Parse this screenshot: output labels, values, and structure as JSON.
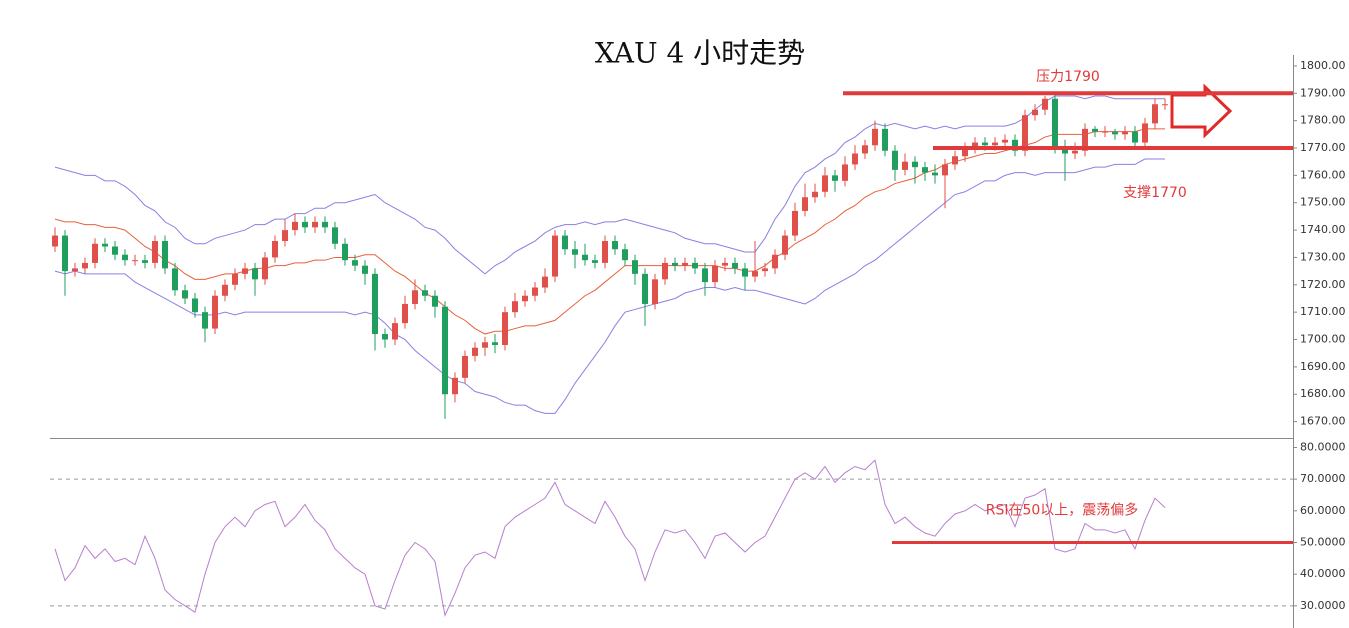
{
  "chart_data": [
    {
      "type": "candlestick",
      "title": "XAU 4 小时走势",
      "open": [
        1734,
        1738,
        1725,
        1726,
        1728,
        1735,
        1734,
        1731,
        1729,
        1729,
        1728,
        1736,
        1726,
        1718,
        1715,
        1710,
        1704,
        1716,
        1720,
        1724,
        1726,
        1722,
        1730,
        1736,
        1740,
        1743,
        1741,
        1743,
        1741,
        1735,
        1729,
        1727,
        1724,
        1702,
        1700,
        1706,
        1713,
        1718,
        1716,
        1712,
        1680,
        1686,
        1694,
        1697,
        1699,
        1698,
        1710,
        1714,
        1716,
        1719,
        1723,
        1738,
        1733,
        1731,
        1729,
        1728,
        1736,
        1733,
        1729,
        1724,
        1713,
        1722,
        1728,
        1727,
        1728,
        1726,
        1721,
        1727,
        1728,
        1726,
        1723,
        1725,
        1726,
        1731,
        1738,
        1747,
        1752,
        1754,
        1760,
        1758,
        1764,
        1768,
        1771,
        1777,
        1769,
        1762,
        1765,
        1763,
        1761,
        1760,
        1764,
        1767,
        1770,
        1772,
        1771,
        1772,
        1773,
        1769,
        1782,
        1784,
        1788,
        1770,
        1768,
        1769,
        1777,
        1776,
        1776,
        1775,
        1776,
        1772,
        1779,
        1786
      ],
      "high": [
        1741,
        1740,
        1728,
        1730,
        1737,
        1737,
        1736,
        1733,
        1731,
        1731,
        1738,
        1738,
        1728,
        1720,
        1717,
        1712,
        1718,
        1722,
        1726,
        1728,
        1728,
        1732,
        1738,
        1744,
        1746,
        1745,
        1745,
        1745,
        1743,
        1737,
        1731,
        1729,
        1726,
        1704,
        1708,
        1716,
        1722,
        1720,
        1718,
        1714,
        1688,
        1696,
        1699,
        1701,
        1702,
        1712,
        1717,
        1718,
        1721,
        1726,
        1740,
        1740,
        1736,
        1735,
        1731,
        1738,
        1738,
        1735,
        1731,
        1726,
        1724,
        1730,
        1730,
        1730,
        1730,
        1728,
        1729,
        1730,
        1730,
        1728,
        1736,
        1728,
        1733,
        1740,
        1750,
        1757,
        1757,
        1763,
        1762,
        1767,
        1771,
        1773,
        1780,
        1779,
        1771,
        1768,
        1767,
        1765,
        1764,
        1766,
        1769,
        1772,
        1774,
        1774,
        1774,
        1775,
        1775,
        1784,
        1786,
        1789,
        1790,
        1773,
        1772,
        1779,
        1778,
        1778,
        1777,
        1778,
        1778,
        1781,
        1788,
        1788
      ],
      "low": [
        1732,
        1716,
        1723,
        1724,
        1726,
        1732,
        1729,
        1727,
        1727,
        1726,
        1726,
        1724,
        1716,
        1713,
        1708,
        1699,
        1702,
        1714,
        1718,
        1722,
        1716,
        1720,
        1728,
        1734,
        1738,
        1739,
        1739,
        1739,
        1733,
        1727,
        1725,
        1720,
        1696,
        1697,
        1698,
        1704,
        1711,
        1714,
        1708,
        1671,
        1677,
        1684,
        1692,
        1694,
        1695,
        1696,
        1708,
        1712,
        1714,
        1717,
        1721,
        1731,
        1726,
        1727,
        1726,
        1726,
        1731,
        1727,
        1720,
        1705,
        1711,
        1720,
        1725,
        1725,
        1724,
        1716,
        1719,
        1725,
        1724,
        1718,
        1721,
        1723,
        1724,
        1729,
        1736,
        1745,
        1750,
        1752,
        1754,
        1756,
        1762,
        1766,
        1769,
        1767,
        1758,
        1760,
        1757,
        1758,
        1757,
        1748,
        1762,
        1765,
        1768,
        1769,
        1769,
        1770,
        1767,
        1767,
        1780,
        1782,
        1768,
        1758,
        1766,
        1767,
        1774,
        1774,
        1773,
        1773,
        1770,
        1770,
        1777,
        1784
      ],
      "close": [
        1738,
        1725,
        1726,
        1728,
        1735,
        1734,
        1731,
        1729,
        1729,
        1728,
        1736,
        1726,
        1718,
        1715,
        1710,
        1704,
        1716,
        1720,
        1724,
        1726,
        1722,
        1730,
        1736,
        1740,
        1743,
        1741,
        1743,
        1741,
        1735,
        1729,
        1727,
        1724,
        1702,
        1700,
        1706,
        1713,
        1718,
        1716,
        1712,
        1680,
        1686,
        1694,
        1697,
        1699,
        1698,
        1710,
        1714,
        1716,
        1719,
        1723,
        1738,
        1733,
        1731,
        1729,
        1728,
        1736,
        1733,
        1729,
        1724,
        1713,
        1722,
        1728,
        1727,
        1728,
        1726,
        1721,
        1727,
        1728,
        1726,
        1723,
        1725,
        1726,
        1731,
        1738,
        1747,
        1752,
        1754,
        1760,
        1758,
        1764,
        1768,
        1771,
        1777,
        1769,
        1762,
        1765,
        1763,
        1761,
        1760,
        1764,
        1767,
        1770,
        1772,
        1771,
        1772,
        1773,
        1769,
        1782,
        1784,
        1788,
        1770,
        1768,
        1769,
        1777,
        1776,
        1776,
        1775,
        1776,
        1772,
        1779,
        1786,
        1786
      ],
      "up_color": "#e0504a",
      "down_color": "#1f9e5e",
      "bands": {
        "upper": [
          1763,
          1762,
          1761,
          1760,
          1760,
          1758,
          1758,
          1756,
          1753,
          1749,
          1747,
          1743,
          1741,
          1737,
          1735,
          1735,
          1737,
          1738,
          1739,
          1740,
          1742,
          1742,
          1744,
          1744,
          1746,
          1746,
          1748,
          1748,
          1750,
          1750,
          1751,
          1752,
          1753,
          1750,
          1748,
          1746,
          1744,
          1741,
          1740,
          1737,
          1733,
          1730,
          1727,
          1724,
          1727,
          1729,
          1732,
          1734,
          1736,
          1739,
          1741,
          1742,
          1742,
          1743,
          1742,
          1743,
          1743,
          1744,
          1743,
          1742,
          1741,
          1740,
          1739,
          1737,
          1736,
          1735,
          1735,
          1734,
          1733,
          1732,
          1732,
          1737,
          1744,
          1749,
          1756,
          1761,
          1763,
          1766,
          1768,
          1772,
          1774,
          1777,
          1779,
          1778,
          1779,
          1778,
          1777,
          1778,
          1777,
          1778,
          1777,
          1778,
          1778,
          1778,
          1778,
          1778,
          1779,
          1781,
          1784,
          1787,
          1789,
          1789,
          1789,
          1788,
          1789,
          1789,
          1788,
          1788,
          1788,
          1788,
          1788,
          1788
        ],
        "middle": [
          1744,
          1743,
          1743,
          1742,
          1742,
          1741,
          1741,
          1740,
          1737,
          1734,
          1732,
          1729,
          1727,
          1724,
          1722,
          1722,
          1723,
          1724,
          1724,
          1725,
          1726,
          1726,
          1727,
          1727,
          1728,
          1728,
          1729,
          1729,
          1730,
          1730,
          1730,
          1731,
          1731,
          1728,
          1725,
          1723,
          1720,
          1717,
          1715,
          1712,
          1709,
          1707,
          1704,
          1702,
          1703,
          1703,
          1704,
          1705,
          1705,
          1706,
          1707,
          1710,
          1713,
          1716,
          1718,
          1721,
          1724,
          1727,
          1727,
          1727,
          1727,
          1727,
          1727,
          1727,
          1727,
          1727,
          1727,
          1726,
          1726,
          1725,
          1725,
          1727,
          1730,
          1732,
          1735,
          1737,
          1739,
          1742,
          1744,
          1747,
          1749,
          1752,
          1754,
          1755,
          1757,
          1758,
          1759,
          1761,
          1762,
          1764,
          1765,
          1766,
          1767,
          1768,
          1768,
          1769,
          1770,
          1771,
          1772,
          1774,
          1775,
          1775,
          1775,
          1775,
          1776,
          1776,
          1776,
          1776,
          1776,
          1777,
          1777,
          1777
        ],
        "lower": [
          1725,
          1724,
          1725,
          1724,
          1724,
          1724,
          1724,
          1724,
          1721,
          1719,
          1717,
          1715,
          1713,
          1711,
          1709,
          1709,
          1709,
          1710,
          1709,
          1710,
          1710,
          1710,
          1710,
          1710,
          1710,
          1710,
          1710,
          1710,
          1710,
          1710,
          1709,
          1710,
          1709,
          1706,
          1702,
          1700,
          1696,
          1693,
          1690,
          1687,
          1685,
          1684,
          1681,
          1680,
          1679,
          1677,
          1676,
          1676,
          1674,
          1673,
          1673,
          1678,
          1684,
          1689,
          1694,
          1699,
          1705,
          1710,
          1711,
          1712,
          1713,
          1714,
          1715,
          1717,
          1718,
          1719,
          1719,
          1718,
          1719,
          1718,
          1718,
          1717,
          1716,
          1715,
          1714,
          1713,
          1715,
          1718,
          1720,
          1722,
          1724,
          1727,
          1729,
          1732,
          1735,
          1738,
          1741,
          1744,
          1747,
          1750,
          1753,
          1754,
          1756,
          1758,
          1758,
          1760,
          1761,
          1761,
          1760,
          1761,
          1761,
          1761,
          1761,
          1762,
          1763,
          1763,
          1764,
          1764,
          1764,
          1766,
          1766,
          1766
        ],
        "band_color": "#8a7fe6",
        "middle_color": "#e8603c"
      },
      "levels": [
        {
          "value": 1790,
          "label": "压力1790",
          "color": "#e03a3a"
        },
        {
          "value": 1770,
          "label": "支撑1770",
          "color": "#e03a3a"
        }
      ],
      "ylim": [
        1664,
        1804
      ],
      "yticks": [
        {
          "value": 1670,
          "label": "1670.00"
        },
        {
          "value": 1680,
          "label": "1680.00"
        },
        {
          "value": 1690,
          "label": "1690.00"
        },
        {
          "value": 1700,
          "label": "1700.00"
        },
        {
          "value": 1710,
          "label": "1710.00"
        },
        {
          "value": 1720,
          "label": "1720.00"
        },
        {
          "value": 1730,
          "label": "1730.00"
        },
        {
          "value": 1740,
          "label": "1740.00"
        },
        {
          "value": 1750,
          "label": "1750.00"
        },
        {
          "value": 1760,
          "label": "1760.00"
        },
        {
          "value": 1770,
          "label": "1770.00"
        },
        {
          "value": 1780,
          "label": "1780.00"
        },
        {
          "value": 1790,
          "label": "1790.00"
        },
        {
          "value": 1800,
          "label": "1800.00"
        }
      ]
    },
    {
      "type": "line",
      "values": [
        48,
        38,
        42,
        49,
        45,
        48,
        44,
        45,
        43,
        52,
        45,
        35,
        32,
        30,
        28,
        40,
        50,
        55,
        58,
        55,
        60,
        62,
        63,
        55,
        58,
        62,
        57,
        54,
        48,
        45,
        42,
        40,
        30,
        29,
        38,
        46,
        50,
        48,
        44,
        27,
        34,
        42,
        46,
        47,
        45,
        55,
        58,
        60,
        62,
        64,
        69,
        62,
        60,
        58,
        56,
        63,
        58,
        52,
        48,
        38,
        47,
        54,
        53,
        54,
        50,
        45,
        52,
        53,
        50,
        47,
        50,
        52,
        58,
        64,
        70,
        72,
        70,
        74,
        69,
        72,
        74,
        73,
        76,
        62,
        56,
        58,
        55,
        53,
        52,
        56,
        59,
        60,
        62,
        60,
        61,
        62,
        55,
        64,
        65,
        67,
        48,
        47,
        48,
        56,
        54,
        54,
        53,
        54,
        48,
        57,
        64,
        61
      ],
      "color": "#b77fcf",
      "ref_lines": [
        70,
        30
      ],
      "level": {
        "value": 50,
        "label": "RSI在50以上，震荡偏多",
        "color": "#e03a3a"
      },
      "ylim": [
        23,
        83
      ],
      "yticks": [
        {
          "value": 30,
          "label": "30.0000"
        },
        {
          "value": 40,
          "label": "40.0000"
        },
        {
          "value": 50,
          "label": "50.0000"
        },
        {
          "value": 60,
          "label": "60.0000"
        },
        {
          "value": 70,
          "label": "70.0000"
        },
        {
          "value": 80,
          "label": "80.0000"
        }
      ]
    }
  ]
}
